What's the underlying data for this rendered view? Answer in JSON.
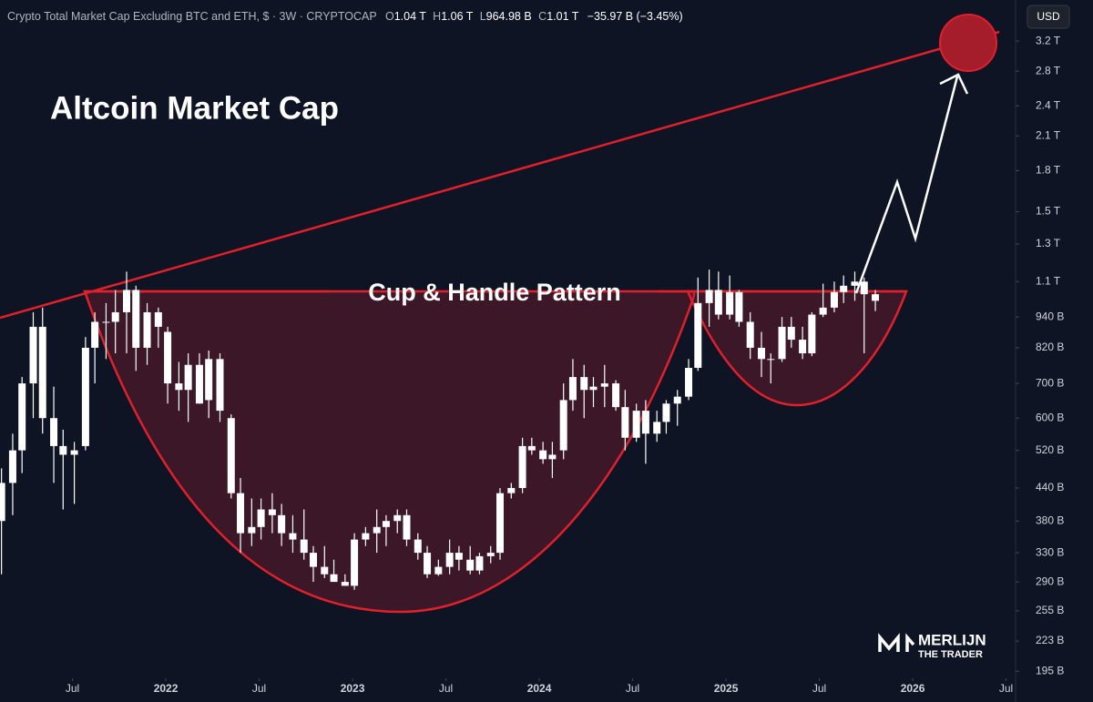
{
  "header": {
    "symbol": "Crypto Total Market Cap Excluding BTC and ETH, $ · 3W · CRYPTOCAP",
    "ohlc": [
      {
        "label": "O",
        "value": "1.04 T"
      },
      {
        "label": "H",
        "value": "1.06 T"
      },
      {
        "label": "L",
        "value": "964.98 B"
      },
      {
        "label": "C",
        "value": "1.01 T"
      }
    ],
    "change": "−35.97 B (−3.45%)",
    "currency": "USD"
  },
  "watermark": {
    "name": "MERLIJN",
    "subtitle": "THE TRADER"
  },
  "chart_data": {
    "type": "candlestick",
    "title": "Altcoin Market Cap",
    "annotation": "Cup & Handle Pattern",
    "log_scale": true,
    "color": "#ffffff",
    "x": [
      2021.12,
      2021.18,
      2021.23,
      2021.29,
      2021.34,
      2021.4,
      2021.45,
      2021.51,
      2021.57,
      2021.62,
      2021.68,
      2021.73,
      2021.79,
      2021.84,
      2021.9,
      2021.96,
      2022.01,
      2022.07,
      2022.12,
      2022.18,
      2022.23,
      2022.29,
      2022.35,
      2022.4,
      2022.46,
      2022.51,
      2022.57,
      2022.62,
      2022.68,
      2022.74,
      2022.79,
      2022.85,
      2022.9,
      2022.96,
      2023.01,
      2023.07,
      2023.13,
      2023.18,
      2023.24,
      2023.29,
      2023.35,
      2023.4,
      2023.46,
      2023.52,
      2023.57,
      2023.63,
      2023.68,
      2023.74,
      2023.79,
      2023.85,
      2023.91,
      2023.96,
      2024.02,
      2024.07,
      2024.13,
      2024.18,
      2024.24,
      2024.29,
      2024.35,
      2024.41,
      2024.46,
      2024.52,
      2024.57,
      2024.63,
      2024.68,
      2024.74,
      2024.8,
      2024.85,
      2024.91,
      2024.96,
      2025.02,
      2025.07,
      2025.13,
      2025.19,
      2025.24,
      2025.3,
      2025.35,
      2025.41,
      2025.46,
      2025.52,
      2025.58,
      2025.63,
      2025.69,
      2025.74,
      2025.8
    ],
    "open": [
      380,
      450,
      520,
      700,
      900,
      600,
      530,
      510,
      530,
      820,
      920,
      920,
      960,
      1060,
      820,
      960,
      880,
      700,
      680,
      760,
      650,
      780,
      600,
      430,
      360,
      370,
      400,
      390,
      360,
      350,
      330,
      310,
      300,
      290,
      285,
      350,
      360,
      370,
      380,
      390,
      350,
      330,
      300,
      310,
      330,
      320,
      305,
      325,
      330,
      430,
      440,
      530,
      520,
      500,
      520,
      650,
      720,
      680,
      690,
      700,
      630,
      550,
      620,
      560,
      590,
      640,
      660,
      750,
      1000,
      1060,
      950,
      1050,
      920,
      820,
      780,
      780,
      900,
      850,
      800,
      950,
      980,
      1050,
      1080,
      1100,
      1040
    ],
    "high": [
      480,
      560,
      720,
      960,
      980,
      690,
      570,
      540,
      860,
      960,
      1000,
      1060,
      1150,
      1080,
      1000,
      980,
      900,
      770,
      800,
      800,
      810,
      800,
      610,
      460,
      420,
      420,
      430,
      410,
      390,
      400,
      340,
      340,
      320,
      300,
      360,
      370,
      400,
      390,
      400,
      400,
      360,
      340,
      320,
      350,
      340,
      340,
      330,
      340,
      440,
      450,
      550,
      550,
      540,
      540,
      700,
      780,
      760,
      720,
      760,
      710,
      680,
      640,
      650,
      620,
      650,
      680,
      780,
      1120,
      1160,
      1150,
      1130,
      1060,
      960,
      880,
      800,
      940,
      940,
      900,
      960,
      1090,
      1100,
      1130,
      1150,
      1120,
      1060
    ],
    "low": [
      300,
      390,
      470,
      600,
      560,
      450,
      400,
      410,
      520,
      700,
      780,
      800,
      800,
      740,
      760,
      820,
      640,
      620,
      590,
      640,
      600,
      590,
      420,
      330,
      340,
      350,
      360,
      340,
      330,
      320,
      290,
      295,
      290,
      285,
      280,
      340,
      330,
      340,
      360,
      340,
      320,
      295,
      298,
      300,
      305,
      300,
      300,
      315,
      320,
      420,
      430,
      510,
      490,
      460,
      500,
      620,
      600,
      630,
      630,
      620,
      520,
      540,
      490,
      540,
      560,
      580,
      650,
      740,
      900,
      930,
      930,
      900,
      780,
      720,
      700,
      770,
      820,
      780,
      790,
      940,
      960,
      1000,
      1010,
      800,
      964.98
    ],
    "close": [
      450,
      520,
      700,
      900,
      600,
      530,
      510,
      520,
      820,
      920,
      920,
      960,
      1060,
      820,
      960,
      900,
      700,
      680,
      760,
      640,
      780,
      620,
      430,
      360,
      370,
      400,
      390,
      360,
      350,
      330,
      310,
      300,
      290,
      285,
      350,
      360,
      370,
      380,
      390,
      350,
      330,
      300,
      310,
      330,
      320,
      305,
      325,
      330,
      430,
      440,
      530,
      520,
      500,
      510,
      650,
      720,
      680,
      690,
      700,
      630,
      550,
      620,
      560,
      590,
      640,
      660,
      750,
      1000,
      1060,
      950,
      1050,
      920,
      820,
      780,
      780,
      900,
      850,
      800,
      950,
      980,
      1050,
      1080,
      1100,
      1040,
      1010
    ],
    "ylim": [
      189,
      3840
    ],
    "yticks": [
      {
        "value": 3200,
        "label": "3.2 T"
      },
      {
        "value": 2800,
        "label": "2.8 T"
      },
      {
        "value": 2400,
        "label": "2.4 T"
      },
      {
        "value": 2100,
        "label": "2.1 T"
      },
      {
        "value": 1800,
        "label": "1.8 T"
      },
      {
        "value": 1500,
        "label": "1.5 T"
      },
      {
        "value": 1300,
        "label": "1.3 T"
      },
      {
        "value": 1100,
        "label": "1.1 T"
      },
      {
        "value": 940,
        "label": "940 B"
      },
      {
        "value": 820,
        "label": "820 B"
      },
      {
        "value": 700,
        "label": "700 B"
      },
      {
        "value": 600,
        "label": "600 B"
      },
      {
        "value": 520,
        "label": "520 B"
      },
      {
        "value": 440,
        "label": "440 B"
      },
      {
        "value": 380,
        "label": "380 B"
      },
      {
        "value": 330,
        "label": "330 B"
      },
      {
        "value": 290,
        "label": "290 B"
      },
      {
        "value": 255,
        "label": "255 B"
      },
      {
        "value": 223,
        "label": "223 B"
      },
      {
        "value": 195,
        "label": "195 B"
      }
    ],
    "xlim": [
      2021.112,
      2026.551
    ],
    "xticks": [
      {
        "value": 2021.5,
        "label": "Jul"
      },
      2022,
      {
        "value": 2022.5,
        "label": "Jul"
      },
      2023,
      {
        "value": 2023.5,
        "label": "Jul"
      },
      2024,
      {
        "value": 2024.5,
        "label": "Jul"
      },
      2025,
      {
        "value": 2025.5,
        "label": "Jul"
      },
      2026,
      {
        "value": 2026.5,
        "label": "Jul"
      }
    ]
  }
}
